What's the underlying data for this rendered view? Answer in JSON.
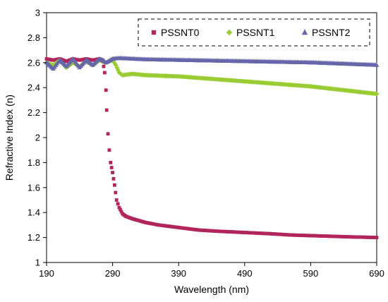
{
  "chart_data": {
    "type": "scatter",
    "xlabel": "Wavelength (nm)",
    "ylabel": "Refractive Index (n)",
    "xlim": [
      190,
      690
    ],
    "ylim": [
      1,
      3
    ],
    "x_ticks": [
      190,
      290,
      390,
      490,
      590,
      690
    ],
    "y_ticks": [
      1,
      1.2,
      1.4,
      1.6,
      1.8,
      2,
      2.2,
      2.4,
      2.6,
      2.8,
      3
    ],
    "x_tick_labels": [
      "190",
      "290",
      "390",
      "490",
      "590",
      "690"
    ],
    "y_tick_labels": [
      "1",
      "1.2",
      "1.4",
      "1.6",
      "1.8",
      "2",
      "2.2",
      "2.4",
      "2.6",
      "2.8",
      "3"
    ],
    "grid": false,
    "legend_position": "top-right",
    "series": [
      {
        "name": "PSSNT0",
        "color": "#b2245c",
        "marker": "square",
        "points": [
          [
            190,
            2.63
          ],
          [
            200,
            2.62
          ],
          [
            210,
            2.63
          ],
          [
            220,
            2.61
          ],
          [
            230,
            2.63
          ],
          [
            240,
            2.62
          ],
          [
            250,
            2.63
          ],
          [
            260,
            2.62
          ],
          [
            270,
            2.63
          ],
          [
            275,
            2.62
          ],
          [
            278,
            2.52
          ],
          [
            280,
            2.38
          ],
          [
            281,
            2.22
          ],
          [
            283,
            2.03
          ],
          [
            285,
            1.9
          ],
          [
            287,
            1.8
          ],
          [
            290,
            1.72
          ],
          [
            293,
            1.62
          ],
          [
            296,
            1.5
          ],
          [
            300,
            1.44
          ],
          [
            305,
            1.39
          ],
          [
            310,
            1.37
          ],
          [
            320,
            1.35
          ],
          [
            340,
            1.32
          ],
          [
            360,
            1.3
          ],
          [
            390,
            1.28
          ],
          [
            420,
            1.26
          ],
          [
            450,
            1.25
          ],
          [
            490,
            1.24
          ],
          [
            530,
            1.23
          ],
          [
            560,
            1.22
          ],
          [
            590,
            1.215
          ],
          [
            620,
            1.21
          ],
          [
            650,
            1.205
          ],
          [
            690,
            1.2
          ]
        ]
      },
      {
        "name": "PSSNT1",
        "color": "#99cc33",
        "marker": "diamond",
        "points": [
          [
            190,
            2.6
          ],
          [
            200,
            2.58
          ],
          [
            210,
            2.62
          ],
          [
            220,
            2.56
          ],
          [
            230,
            2.6
          ],
          [
            240,
            2.57
          ],
          [
            250,
            2.61
          ],
          [
            260,
            2.58
          ],
          [
            270,
            2.62
          ],
          [
            280,
            2.6
          ],
          [
            290,
            2.62
          ],
          [
            295,
            2.58
          ],
          [
            300,
            2.52
          ],
          [
            305,
            2.5
          ],
          [
            320,
            2.51
          ],
          [
            340,
            2.5
          ],
          [
            390,
            2.49
          ],
          [
            440,
            2.47
          ],
          [
            490,
            2.45
          ],
          [
            540,
            2.43
          ],
          [
            590,
            2.41
          ],
          [
            640,
            2.38
          ],
          [
            690,
            2.35
          ]
        ]
      },
      {
        "name": "PSSNT2",
        "color": "#6666aa",
        "marker": "triangle",
        "points": [
          [
            190,
            2.6
          ],
          [
            200,
            2.55
          ],
          [
            210,
            2.62
          ],
          [
            220,
            2.57
          ],
          [
            230,
            2.63
          ],
          [
            240,
            2.56
          ],
          [
            250,
            2.62
          ],
          [
            260,
            2.58
          ],
          [
            270,
            2.63
          ],
          [
            280,
            2.6
          ],
          [
            290,
            2.63
          ],
          [
            300,
            2.635
          ],
          [
            320,
            2.63
          ],
          [
            340,
            2.625
          ],
          [
            390,
            2.62
          ],
          [
            440,
            2.615
          ],
          [
            490,
            2.61
          ],
          [
            540,
            2.605
          ],
          [
            590,
            2.6
          ],
          [
            640,
            2.59
          ],
          [
            690,
            2.58
          ]
        ]
      }
    ]
  }
}
